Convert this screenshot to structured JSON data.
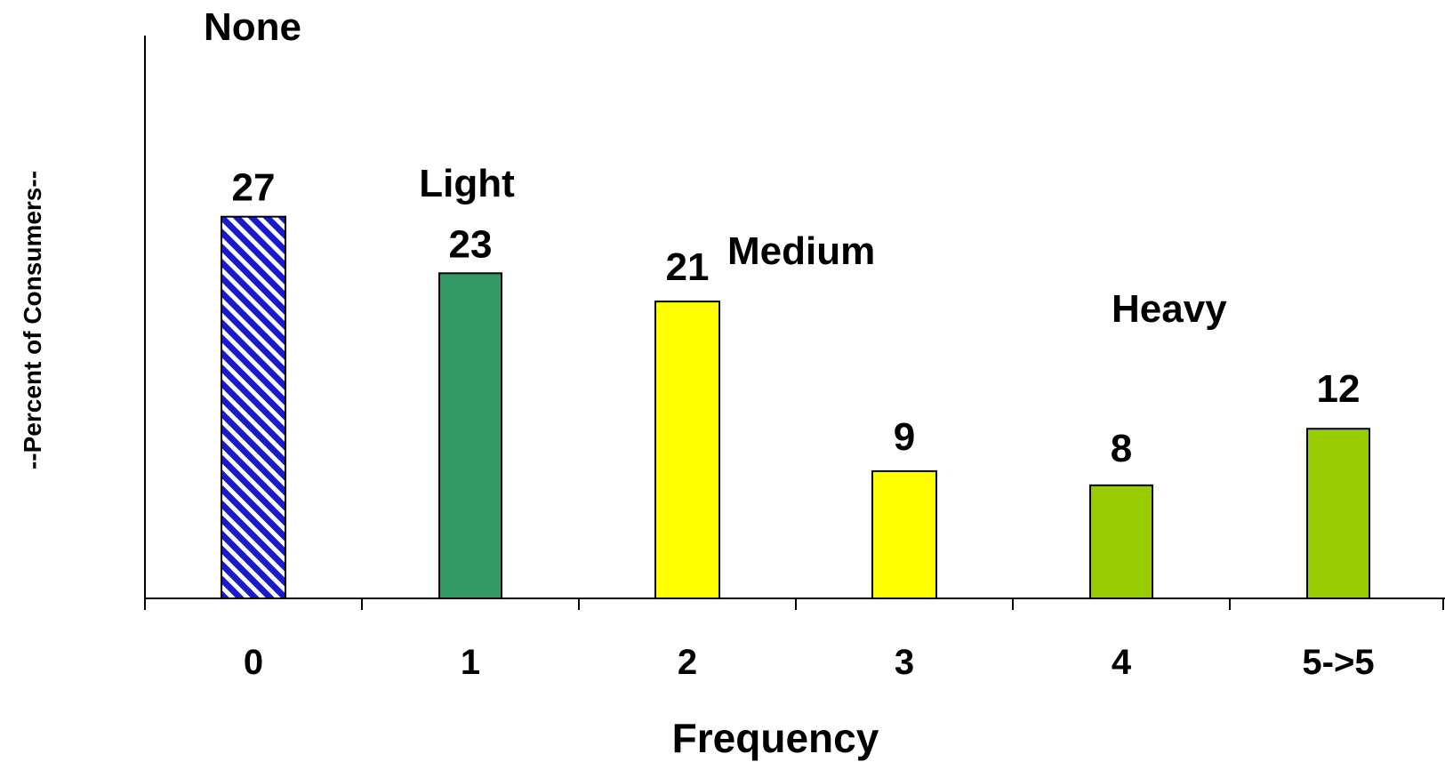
{
  "chart_data": {
    "type": "bar",
    "title": "",
    "xlabel": "Frequency",
    "ylabel": "--Percent of Consumers--",
    "categories": [
      "0",
      "1",
      "2",
      "3",
      "4",
      "5->5"
    ],
    "values": [
      27,
      23,
      21,
      9,
      8,
      12
    ],
    "data_labels": [
      "27",
      "23",
      "21",
      "9",
      "8",
      "12"
    ],
    "ylim": [
      0,
      40
    ],
    "grid": false,
    "legend": "none",
    "bar_colors": [
      "#1a1acc",
      "#339966",
      "#ffff00",
      "#ffff00",
      "#99cc00",
      "#99cc00"
    ],
    "bar_patterns": [
      "diagonal-stripes",
      "solid",
      "solid",
      "solid",
      "solid",
      "solid"
    ],
    "annotations": [
      {
        "text": "None",
        "near_category": "0",
        "position": "above-axis-top"
      },
      {
        "text": "Light",
        "near_category": "1",
        "position": "above-label"
      },
      {
        "text": "Medium",
        "near_category": "2",
        "position": "right-of-label"
      },
      {
        "text": "Heavy",
        "near_category": "4",
        "position": "above-right"
      }
    ]
  }
}
